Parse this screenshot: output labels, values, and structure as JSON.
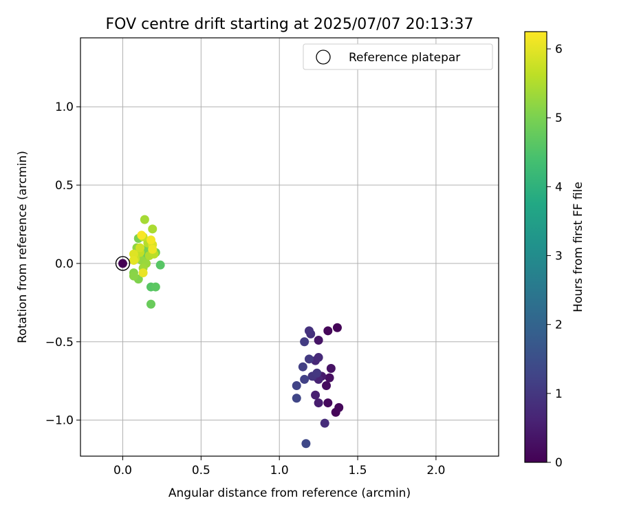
{
  "chart_data": {
    "type": "scatter",
    "title": "FOV centre drift starting at 2025/07/07 20:13:37",
    "xlabel": "Angular distance from reference (arcmin)",
    "ylabel": "Rotation from reference (arcmin)",
    "xlim": [
      -0.27,
      2.4
    ],
    "ylim": [
      -1.23,
      1.44
    ],
    "xticks": [
      "0.0",
      "0.5",
      "1.0",
      "1.5",
      "2.0"
    ],
    "xtick_values": [
      0.0,
      0.5,
      1.0,
      1.5,
      2.0
    ],
    "yticks": [
      "−1.0",
      "−0.5",
      "0.0",
      "0.5",
      "1.0"
    ],
    "ytick_values": [
      -1.0,
      -0.5,
      0.0,
      0.5,
      1.0
    ],
    "grid": true,
    "legend": {
      "placement": "top-right",
      "entries": [
        "Reference platepar"
      ]
    },
    "reference": {
      "x": 0.0,
      "y": 0.0
    },
    "colorbar": {
      "label": "Hours from first FF file",
      "colormap": "viridis",
      "range": [
        0,
        6.25
      ],
      "ticks": [
        "0",
        "1",
        "2",
        "3",
        "4",
        "5",
        "6"
      ],
      "tick_values": [
        0,
        1,
        2,
        3,
        4,
        5,
        6
      ]
    },
    "points": [
      {
        "x": 1.37,
        "y": -0.41,
        "h": 0.05
      },
      {
        "x": 1.31,
        "y": -0.43,
        "h": 0.1
      },
      {
        "x": 1.36,
        "y": -0.95,
        "h": 0.08
      },
      {
        "x": 1.38,
        "y": -0.92,
        "h": 0.12
      },
      {
        "x": 1.31,
        "y": -0.89,
        "h": 0.15
      },
      {
        "x": 1.3,
        "y": -0.78,
        "h": 0.2
      },
      {
        "x": 1.32,
        "y": -0.73,
        "h": 0.25
      },
      {
        "x": 1.33,
        "y": -0.67,
        "h": 0.3
      },
      {
        "x": 1.25,
        "y": -0.49,
        "h": 0.35
      },
      {
        "x": 1.27,
        "y": -0.72,
        "h": 0.45
      },
      {
        "x": 1.25,
        "y": -0.89,
        "h": 0.5
      },
      {
        "x": 1.23,
        "y": -0.84,
        "h": 0.55
      },
      {
        "x": 1.25,
        "y": -0.74,
        "h": 0.6
      },
      {
        "x": 1.22,
        "y": -0.72,
        "h": 0.65
      },
      {
        "x": 1.23,
        "y": -0.62,
        "h": 0.7
      },
      {
        "x": 1.25,
        "y": -0.6,
        "h": 0.75
      },
      {
        "x": 1.29,
        "y": -1.02,
        "h": 0.8
      },
      {
        "x": 1.2,
        "y": -0.45,
        "h": 0.85
      },
      {
        "x": 1.19,
        "y": -0.43,
        "h": 0.9
      },
      {
        "x": 1.21,
        "y": -0.72,
        "h": 0.95
      },
      {
        "x": 1.24,
        "y": -0.7,
        "h": 1.0
      },
      {
        "x": 1.19,
        "y": -0.61,
        "h": 1.05
      },
      {
        "x": 1.16,
        "y": -0.5,
        "h": 1.1
      },
      {
        "x": 1.15,
        "y": -0.66,
        "h": 1.15
      },
      {
        "x": 1.16,
        "y": -0.74,
        "h": 1.2
      },
      {
        "x": 1.11,
        "y": -0.78,
        "h": 1.25
      },
      {
        "x": 1.11,
        "y": -0.86,
        "h": 1.3
      },
      {
        "x": 1.17,
        "y": -1.15,
        "h": 1.35
      },
      {
        "x": 0.18,
        "y": -0.15,
        "h": 4.6
      },
      {
        "x": 0.21,
        "y": -0.15,
        "h": 4.65
      },
      {
        "x": 0.24,
        "y": -0.01,
        "h": 4.6
      },
      {
        "x": 0.18,
        "y": -0.26,
        "h": 4.8
      },
      {
        "x": 0.21,
        "y": 0.07,
        "h": 4.9
      },
      {
        "x": 0.14,
        "y": 0.04,
        "h": 4.85
      },
      {
        "x": 0.15,
        "y": 0.09,
        "h": 4.95
      },
      {
        "x": 0.1,
        "y": 0.16,
        "h": 5.0
      },
      {
        "x": 0.14,
        "y": 0.28,
        "h": 5.4
      },
      {
        "x": 0.19,
        "y": 0.22,
        "h": 5.45
      },
      {
        "x": 0.1,
        "y": -0.1,
        "h": 5.05
      },
      {
        "x": 0.07,
        "y": -0.06,
        "h": 5.1
      },
      {
        "x": 0.07,
        "y": -0.08,
        "h": 5.15
      },
      {
        "x": 0.09,
        "y": 0.1,
        "h": 5.2
      },
      {
        "x": 0.12,
        "y": 0.02,
        "h": 5.25
      },
      {
        "x": 0.15,
        "y": 0.0,
        "h": 5.3
      },
      {
        "x": 0.13,
        "y": -0.03,
        "h": 5.35
      },
      {
        "x": 0.17,
        "y": 0.05,
        "h": 5.5
      },
      {
        "x": 0.16,
        "y": 0.13,
        "h": 5.55
      },
      {
        "x": 0.2,
        "y": 0.06,
        "h": 5.6
      },
      {
        "x": 0.11,
        "y": 0.07,
        "h": 5.65
      },
      {
        "x": 0.13,
        "y": 0.17,
        "h": 5.7
      },
      {
        "x": 0.08,
        "y": 0.03,
        "h": 5.75
      },
      {
        "x": 0.11,
        "y": 0.1,
        "h": 5.8
      },
      {
        "x": 0.19,
        "y": 0.12,
        "h": 5.9
      },
      {
        "x": 0.07,
        "y": 0.06,
        "h": 5.95
      },
      {
        "x": 0.07,
        "y": 0.02,
        "h": 6.0
      },
      {
        "x": 0.13,
        "y": -0.06,
        "h": 6.05
      },
      {
        "x": 0.19,
        "y": 0.09,
        "h": 6.1
      },
      {
        "x": 0.18,
        "y": 0.15,
        "h": 6.15
      },
      {
        "x": 0.12,
        "y": 0.18,
        "h": 6.2
      },
      {
        "x": 0.0,
        "y": 0.0,
        "h": 0.0
      }
    ]
  }
}
